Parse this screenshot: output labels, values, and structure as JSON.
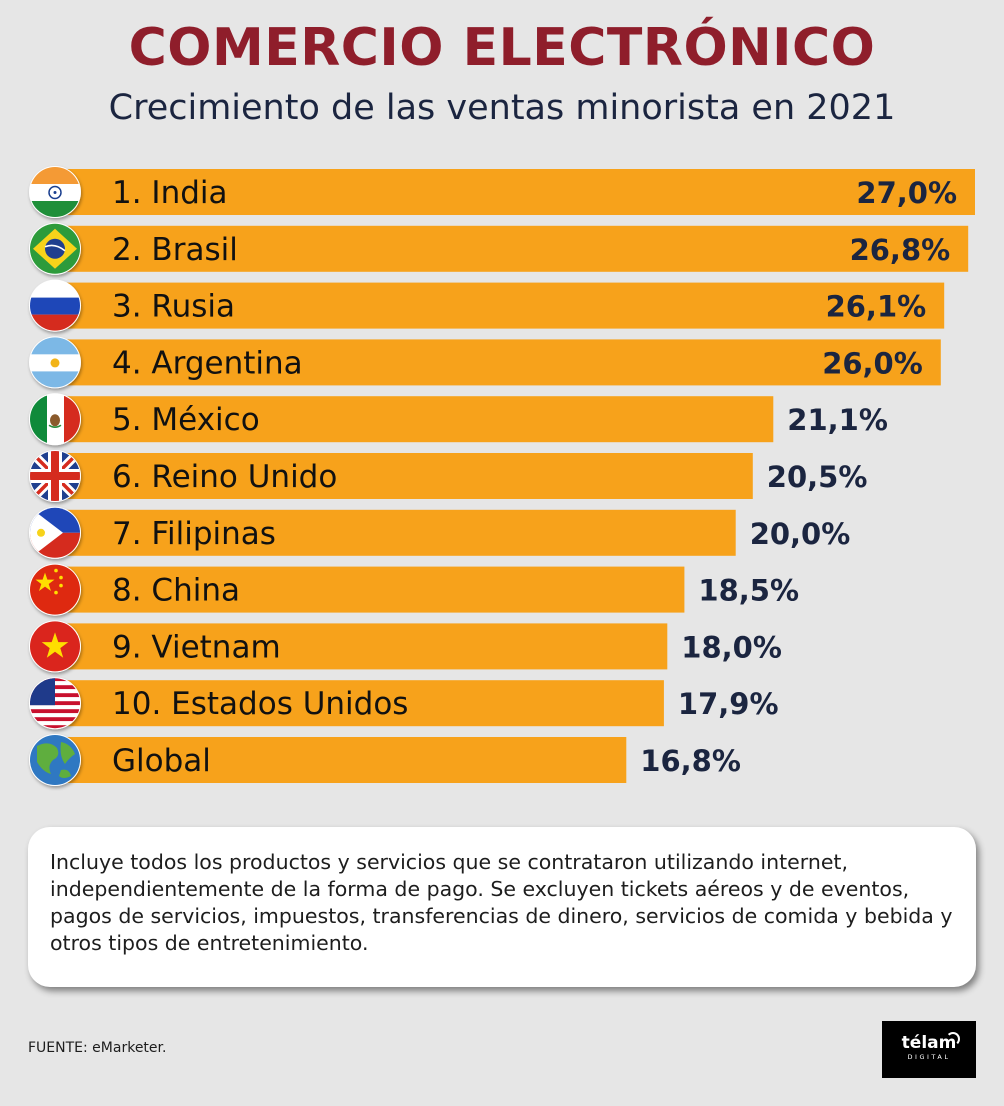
{
  "title": "COMERCIO ELECTRÓNICO",
  "subtitle": "Crecimiento de las ventas minorista en 2021",
  "chart_data": {
    "type": "bar",
    "orientation": "horizontal",
    "title": "COMERCIO ELECTRÓNICO",
    "subtitle": "Crecimiento de las ventas minorista en 2021",
    "unit": "%",
    "xlim": [
      0,
      27
    ],
    "grid": false,
    "legend": "none",
    "bar_color": "#f7a21b",
    "categories": [
      "1. India",
      "2. Brasil",
      "3. Rusia",
      "4. Argentina",
      "5. México",
      "6. Reino Unido",
      "7. Filipinas",
      "8. China",
      "9. Vietnam",
      "10. Estados Unidos",
      "Global"
    ],
    "values": [
      27.0,
      26.8,
      26.1,
      26.0,
      21.1,
      20.5,
      20.0,
      18.5,
      18.0,
      17.9,
      16.8
    ],
    "value_labels": [
      "27,0%",
      "26,8%",
      "26,1%",
      "26,0%",
      "21,1%",
      "20,5%",
      "20,0%",
      "18,5%",
      "18,0%",
      "17,9%",
      "16,8%"
    ],
    "icons": [
      "india-flag-icon",
      "brazil-flag-icon",
      "russia-flag-icon",
      "argentina-flag-icon",
      "mexico-flag-icon",
      "uk-flag-icon",
      "philippines-flag-icon",
      "china-flag-icon",
      "vietnam-flag-icon",
      "usa-flag-icon",
      "globe-icon"
    ]
  },
  "note": "Incluye todos los productos y servicios que se contrataron utilizando internet, independientemente de la forma de pago. Se excluyen tickets aéreos y de eventos, pagos de servicios, impuestos, transferencias de dinero, servicios de comida y bebida y otros tipos de entretenimiento.",
  "source": "FUENTE: eMarketer.",
  "logo": {
    "name": "télam",
    "sub": "DIGITAL"
  },
  "colors": {
    "title": "#8f1e2b",
    "subtitle": "#1b2540",
    "bar": "#f7a21b",
    "background": "#e6e6e6",
    "value_text": "#1b2540"
  }
}
